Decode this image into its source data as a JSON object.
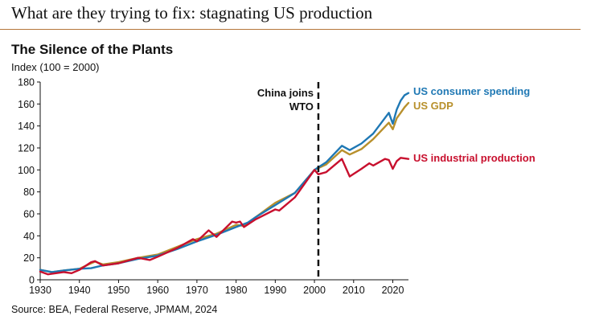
{
  "header": {
    "text": "What are they trying to fix: stagnating US production"
  },
  "colors": {
    "rule": "#b5763a",
    "consumer": "#1f78b4",
    "gdp": "#b8902c",
    "industrial": "#c8102e"
  },
  "chart_data": {
    "type": "line",
    "title": "The Silence of the Plants",
    "subtitle": "Index (100 = 2000)",
    "source": "Source: BEA, Federal Reserve, JPMAM, 2024",
    "xlim": [
      1930,
      2024
    ],
    "ylim": [
      0,
      180
    ],
    "x_ticks": [
      1930,
      1940,
      1950,
      1960,
      1970,
      1980,
      1990,
      2000,
      2010,
      2020
    ],
    "y_ticks": [
      0,
      20,
      40,
      60,
      80,
      100,
      120,
      140,
      160,
      180
    ],
    "grid": false,
    "legend_placement": "right",
    "annotation": {
      "x": 2001,
      "lines": [
        "China joins",
        "WTO"
      ],
      "style": "dashed vertical line"
    },
    "series": [
      {
        "name": "US consumer spending",
        "color": "#1f78b4",
        "points": [
          [
            1930,
            9
          ],
          [
            1933,
            7
          ],
          [
            1936,
            8.5
          ],
          [
            1940,
            10
          ],
          [
            1943,
            10.5
          ],
          [
            1946,
            13
          ],
          [
            1950,
            15
          ],
          [
            1955,
            19
          ],
          [
            1960,
            22
          ],
          [
            1965,
            28
          ],
          [
            1970,
            35
          ],
          [
            1975,
            41
          ],
          [
            1980,
            48
          ],
          [
            1983,
            52
          ],
          [
            1985,
            57
          ],
          [
            1990,
            68
          ],
          [
            1995,
            79
          ],
          [
            2000,
            100
          ],
          [
            2003,
            107
          ],
          [
            2007,
            122
          ],
          [
            2009,
            118
          ],
          [
            2012,
            124
          ],
          [
            2015,
            133
          ],
          [
            2019,
            152
          ],
          [
            2020,
            142
          ],
          [
            2021,
            155
          ],
          [
            2022,
            163
          ],
          [
            2023,
            168
          ],
          [
            2024,
            170
          ]
        ]
      },
      {
        "name": "US GDP",
        "color": "#b8902c",
        "points": [
          [
            1930,
            9
          ],
          [
            1933,
            7
          ],
          [
            1936,
            8.5
          ],
          [
            1940,
            10
          ],
          [
            1943,
            15
          ],
          [
            1944,
            16.5
          ],
          [
            1946,
            14
          ],
          [
            1950,
            16
          ],
          [
            1955,
            20
          ],
          [
            1960,
            23
          ],
          [
            1965,
            30
          ],
          [
            1970,
            37
          ],
          [
            1975,
            42
          ],
          [
            1980,
            50
          ],
          [
            1982,
            49
          ],
          [
            1985,
            57
          ],
          [
            1990,
            70
          ],
          [
            1995,
            79
          ],
          [
            2000,
            100
          ],
          [
            2003,
            105
          ],
          [
            2007,
            118
          ],
          [
            2009,
            114
          ],
          [
            2012,
            119
          ],
          [
            2015,
            128
          ],
          [
            2019,
            143
          ],
          [
            2020,
            137
          ],
          [
            2021,
            147
          ],
          [
            2022,
            152
          ],
          [
            2023,
            157
          ],
          [
            2024,
            161
          ]
        ]
      },
      {
        "name": "US industrial production",
        "color": "#c8102e",
        "points": [
          [
            1930,
            7.5
          ],
          [
            1932,
            5
          ],
          [
            1936,
            7
          ],
          [
            1938,
            6
          ],
          [
            1940,
            9
          ],
          [
            1943,
            16
          ],
          [
            1944,
            17
          ],
          [
            1946,
            13
          ],
          [
            1950,
            15
          ],
          [
            1953,
            18
          ],
          [
            1955,
            20
          ],
          [
            1958,
            18
          ],
          [
            1960,
            21
          ],
          [
            1965,
            29
          ],
          [
            1969,
            37
          ],
          [
            1970,
            35
          ],
          [
            1973,
            45
          ],
          [
            1975,
            39
          ],
          [
            1979,
            53
          ],
          [
            1980,
            52
          ],
          [
            1981,
            53
          ],
          [
            1982,
            48
          ],
          [
            1985,
            55
          ],
          [
            1990,
            64
          ],
          [
            1991,
            63
          ],
          [
            1995,
            75
          ],
          [
            2000,
            100
          ],
          [
            2001,
            96
          ],
          [
            2003,
            98
          ],
          [
            2007,
            110
          ],
          [
            2009,
            94
          ],
          [
            2012,
            101
          ],
          [
            2014,
            106
          ],
          [
            2015,
            104
          ],
          [
            2018,
            110
          ],
          [
            2019,
            109
          ],
          [
            2020,
            101
          ],
          [
            2021,
            108
          ],
          [
            2022,
            111
          ],
          [
            2024,
            110
          ]
        ]
      }
    ]
  }
}
